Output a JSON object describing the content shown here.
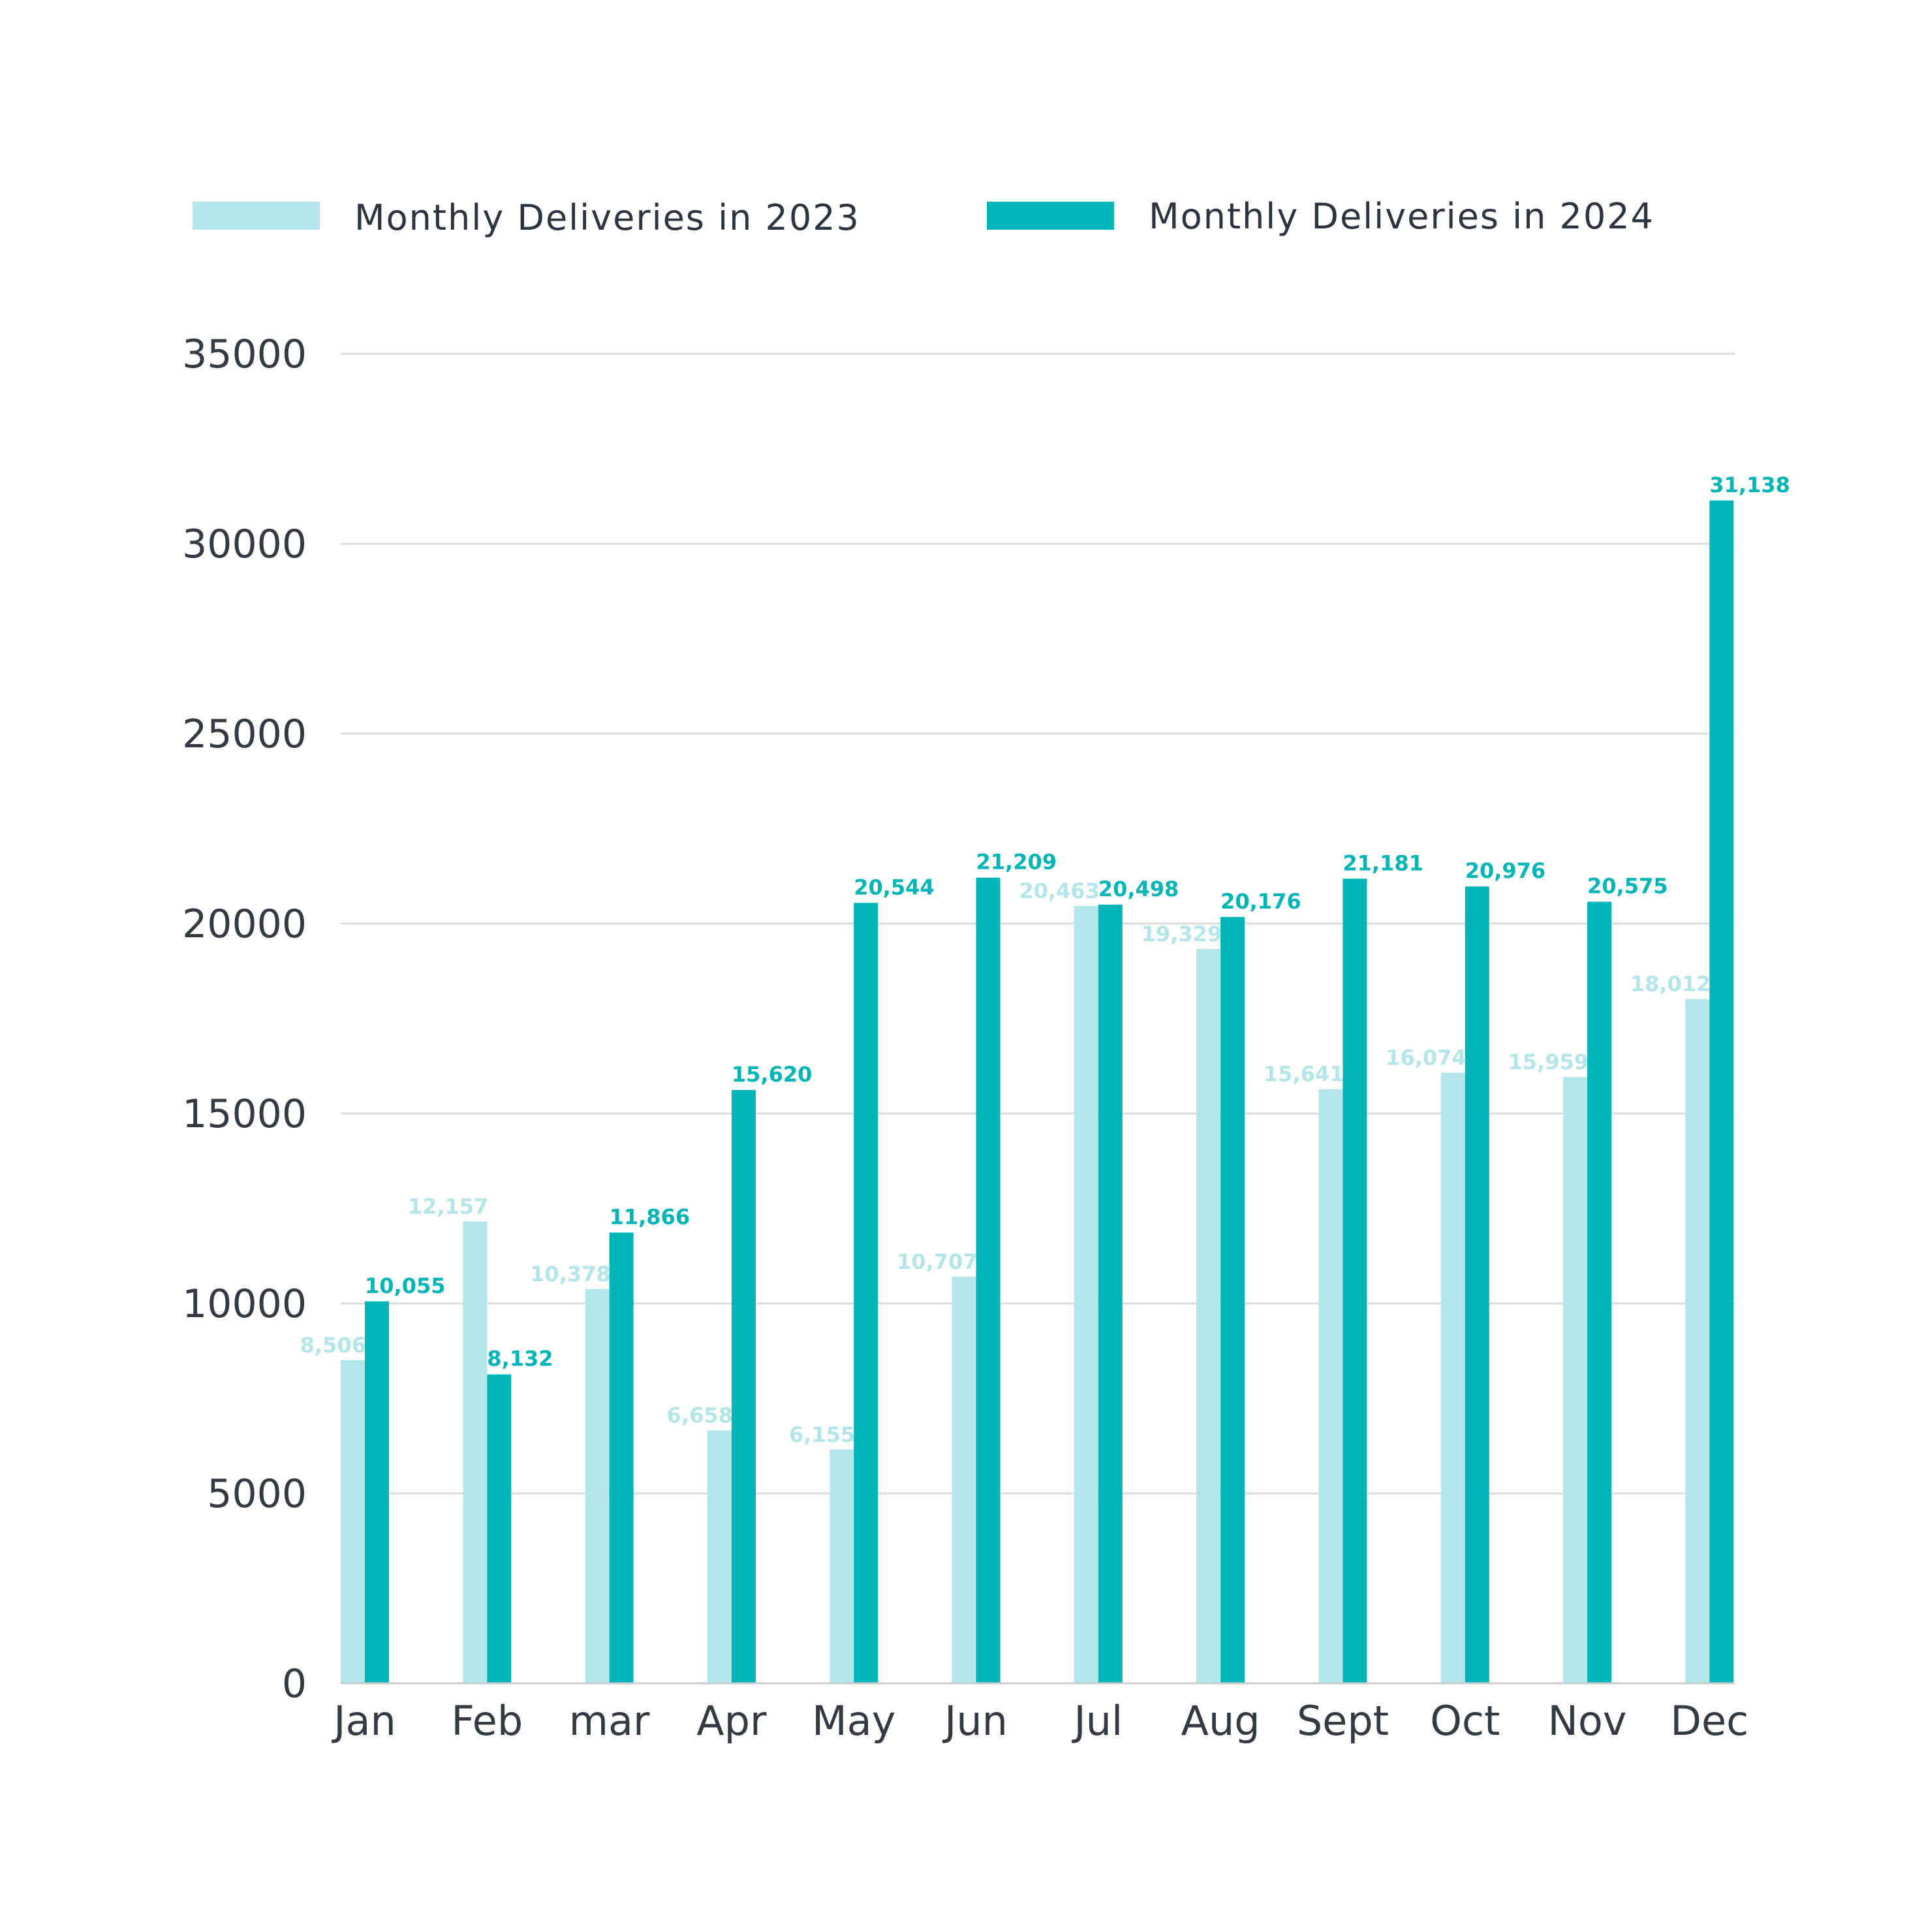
{
  "chart_data": {
    "type": "bar",
    "categories": [
      "Jan",
      "Feb",
      "mar",
      "Apr",
      "May",
      "Jun",
      "Jul",
      "Aug",
      "Sept",
      "Oct",
      "Nov",
      "Dec"
    ],
    "series": [
      {
        "name": "Monthly Deliveries in 2023",
        "color": "#b4e6e9",
        "values": [
          8506,
          12157,
          10378,
          6658,
          6155,
          10707,
          20463,
          19329,
          15641,
          16074,
          15959,
          18012
        ],
        "value_labels": [
          "8,506",
          "12,157",
          "10,378",
          "6,658",
          "6,155",
          "10,707",
          "20,463",
          "19,329",
          "15,641",
          "16,074",
          "15,959",
          "18,012"
        ]
      },
      {
        "name": "Monthly Deliveries in 2024",
        "color": "#00b5b8",
        "values": [
          10055,
          8132,
          11866,
          15620,
          20544,
          21209,
          20498,
          20176,
          21181,
          20976,
          20575,
          31138
        ],
        "value_labels": [
          "10,055",
          "8,132",
          "11,866",
          "15,620",
          "20,544",
          "21,209",
          "20,498",
          "20,176",
          "21,181",
          "20,976",
          "20,575",
          "31,138"
        ]
      }
    ],
    "yticks": [
      "0",
      "5000",
      "10000",
      "15000",
      "20000",
      "25000",
      "30000",
      "35000"
    ],
    "ylim": [
      0,
      35000
    ],
    "grid": true,
    "legend_position": "top",
    "title": "",
    "xlabel": "",
    "ylabel": ""
  }
}
